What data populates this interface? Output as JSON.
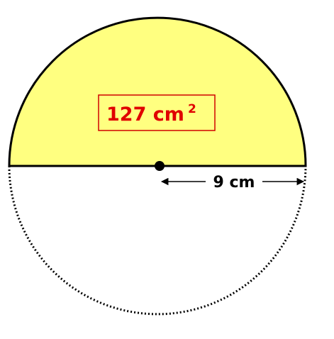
{
  "diagram": {
    "area": {
      "value": "127 cm",
      "exponent": "2"
    },
    "radius": {
      "label": "9 cm"
    },
    "colors": {
      "semicircle_fill": "#ffff80",
      "outline": "#000000",
      "area_text": "#e00000",
      "area_box_border": "#d00000",
      "center_dot": "#000000"
    }
  }
}
